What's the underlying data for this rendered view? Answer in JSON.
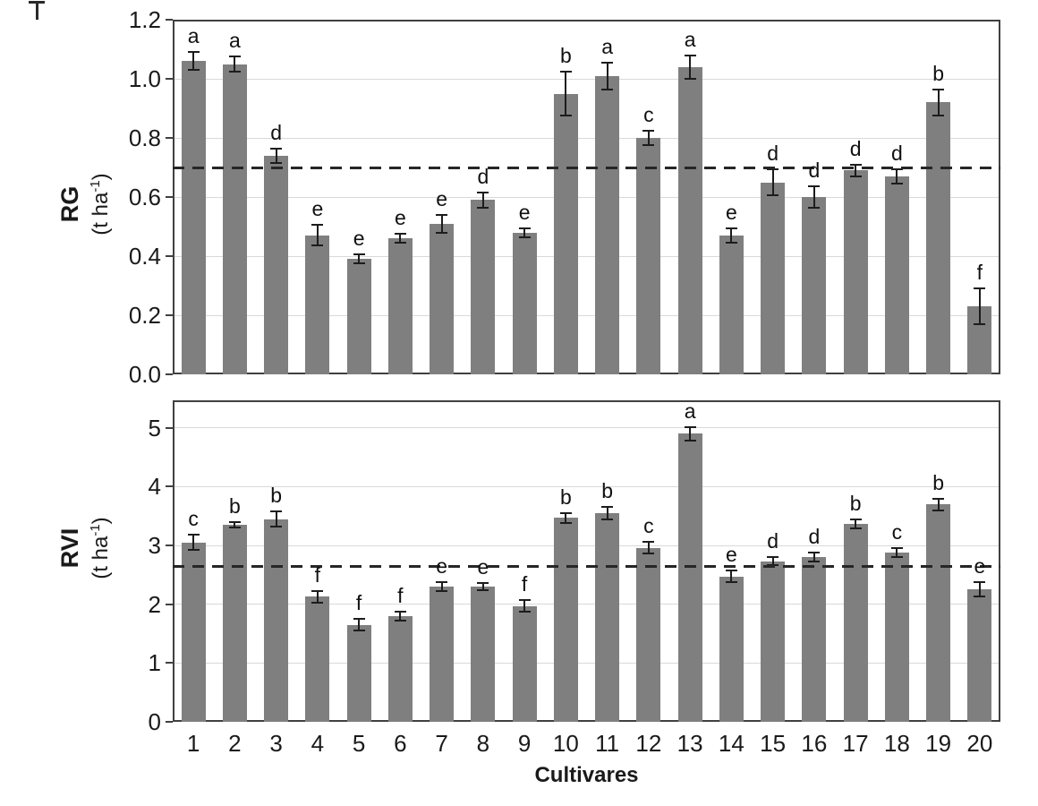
{
  "figure": {
    "xlabel": "Cultivares",
    "stray_mark": "error-bar-cap-artifact"
  },
  "chart_data": [
    {
      "type": "bar",
      "panel": "top",
      "ylabel": "RG",
      "ylabel_unit": {
        "text": "(t ha",
        "sup": "-1",
        "close": ")"
      },
      "categories": [
        "1",
        "2",
        "3",
        "4",
        "5",
        "6",
        "7",
        "8",
        "9",
        "10",
        "11",
        "12",
        "13",
        "14",
        "15",
        "16",
        "17",
        "18",
        "19",
        "20"
      ],
      "values": [
        1.06,
        1.05,
        0.74,
        0.47,
        0.39,
        0.46,
        0.51,
        0.59,
        0.48,
        0.95,
        1.01,
        0.8,
        1.04,
        0.47,
        0.65,
        0.6,
        0.69,
        0.67,
        0.92,
        0.23
      ],
      "errors": [
        0.03,
        0.025,
        0.025,
        0.035,
        0.015,
        0.015,
        0.03,
        0.025,
        0.015,
        0.075,
        0.045,
        0.025,
        0.04,
        0.025,
        0.045,
        0.035,
        0.02,
        0.025,
        0.045,
        0.06
      ],
      "letters": [
        "a",
        "a",
        "d",
        "e",
        "e",
        "e",
        "e",
        "d",
        "e",
        "b",
        "a",
        "c",
        "a",
        "e",
        "d",
        "d",
        "d",
        "d",
        "b",
        "f"
      ],
      "reference_line": 0.7,
      "ylim": [
        0,
        1.2
      ],
      "yticks": [
        "0.0",
        "0.2",
        "0.4",
        "0.6",
        "0.8",
        "1.0",
        "1.2"
      ],
      "show_x_tick_labels": false,
      "grid": true,
      "legend": "none",
      "bar_color": "#7f7f7f"
    },
    {
      "type": "bar",
      "panel": "bottom",
      "ylabel": "RVI",
      "ylabel_unit": {
        "text": "(t ha",
        "sup": "-1",
        "close": ")"
      },
      "categories": [
        "1",
        "2",
        "3",
        "4",
        "5",
        "6",
        "7",
        "8",
        "9",
        "10",
        "11",
        "12",
        "13",
        "14",
        "15",
        "16",
        "17",
        "18",
        "19",
        "20"
      ],
      "values": [
        3.05,
        3.35,
        3.45,
        2.13,
        1.65,
        1.8,
        2.3,
        2.3,
        1.97,
        3.47,
        3.55,
        2.96,
        4.9,
        2.47,
        2.73,
        2.8,
        3.37,
        2.88,
        3.7,
        2.25
      ],
      "errors": [
        0.13,
        0.05,
        0.13,
        0.1,
        0.1,
        0.08,
        0.08,
        0.06,
        0.1,
        0.08,
        0.1,
        0.1,
        0.12,
        0.1,
        0.07,
        0.08,
        0.08,
        0.07,
        0.1,
        0.12
      ],
      "letters": [
        "c",
        "b",
        "b",
        "f",
        "f",
        "f",
        "e",
        "e",
        "f",
        "b",
        "b",
        "c",
        "a",
        "e",
        "d",
        "d",
        "b",
        "c",
        "b",
        "e"
      ],
      "reference_line": 2.65,
      "ylim": [
        0,
        5.47
      ],
      "yticks": [
        "0",
        "1",
        "2",
        "3",
        "4",
        "5"
      ],
      "show_x_tick_labels": true,
      "grid": true,
      "legend": "none",
      "bar_color": "#7f7f7f"
    }
  ]
}
